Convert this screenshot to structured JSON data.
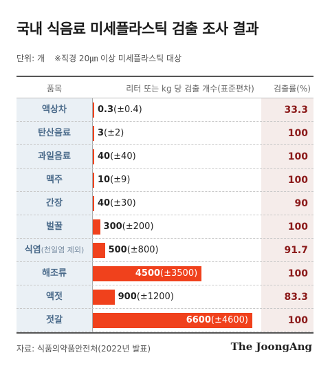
{
  "header": {
    "title": "국내 식음료 미세플라스틱 검출 조사 결과",
    "unit": "단위: 개",
    "note": "※직경 20㎛ 이상 미세플라스틱 대상"
  },
  "table_header": {
    "category": "품목",
    "value": "리터 또는 kg 당 검출 개수(표준편차)",
    "rate": "검출률(%)"
  },
  "chart_data": {
    "type": "bar",
    "orientation": "horizontal",
    "title": "국내 식음료 미세플라스틱 검출 조사 결과",
    "categories": [
      {
        "name": "액상차",
        "note": ""
      },
      {
        "name": "탄산음료",
        "note": ""
      },
      {
        "name": "과일음료",
        "note": ""
      },
      {
        "name": "맥주",
        "note": ""
      },
      {
        "name": "간장",
        "note": ""
      },
      {
        "name": "벌꿀",
        "note": ""
      },
      {
        "name": "식염",
        "note": "(천일염 제외)"
      },
      {
        "name": "해조류",
        "note": ""
      },
      {
        "name": "액젓",
        "note": ""
      },
      {
        "name": "젓갈",
        "note": ""
      }
    ],
    "values": [
      0.3,
      3,
      40,
      10,
      40,
      300,
      500,
      4500,
      900,
      6600
    ],
    "value_labels": [
      "0.3",
      "3",
      "40",
      "10",
      "40",
      "300",
      "500",
      "4500",
      "900",
      "6600"
    ],
    "std_labels": [
      "(±0.4)",
      "(±2)",
      "(±40)",
      "(±9)",
      "(±30)",
      "(±200)",
      "(±800)",
      "(±3500)",
      "(±1200)",
      "(±4600)"
    ],
    "detection_rate": [
      "33.3",
      "100",
      "100",
      "100",
      "90",
      "100",
      "91.7",
      "100",
      "83.3",
      "100"
    ],
    "xlim": [
      0,
      6600
    ],
    "grid": false,
    "colors": {
      "bar": "#f0411c",
      "rate": "#8b1a1a",
      "category": "#4a6a8a"
    }
  },
  "footer": {
    "source": "자료: 식품의약품안전처(2022년 발표)",
    "brand": "The JoongAng"
  }
}
